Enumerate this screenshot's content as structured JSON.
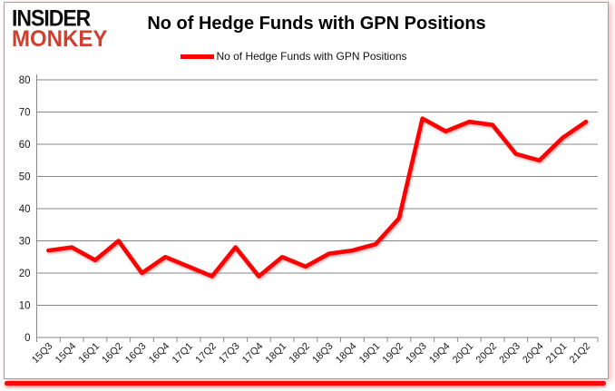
{
  "brand": {
    "line1": "INSIDER",
    "line2": "MONKEY",
    "color": "#d0402e"
  },
  "header": {
    "title": "No of Hedge Funds with GPN Positions"
  },
  "legend": {
    "label": "No of Hedge Funds with GPN Positions",
    "line_color": "#fe0000"
  },
  "chart_data": {
    "type": "line",
    "title": "No of Hedge Funds with GPN Positions",
    "categories": [
      "15Q3",
      "15Q4",
      "16Q1",
      "16Q2",
      "16Q3",
      "16Q4",
      "17Q1",
      "17Q2",
      "17Q3",
      "17Q4",
      "18Q1",
      "18Q2",
      "18Q3",
      "18Q4",
      "19Q1",
      "19Q2",
      "19Q3",
      "19Q4",
      "20Q1",
      "20Q2",
      "20Q3",
      "20Q4",
      "21Q1",
      "21Q2"
    ],
    "series": [
      {
        "name": "No of Hedge Funds with GPN Positions",
        "color": "#fe0000",
        "values": [
          27,
          28,
          24,
          30,
          20,
          25,
          22,
          19,
          28,
          19,
          25,
          22,
          26,
          27,
          29,
          37,
          68,
          64,
          67,
          66,
          57,
          55,
          62,
          67
        ]
      }
    ],
    "xlabel": "",
    "ylabel": "",
    "ylim": [
      0,
      80
    ],
    "ytick_step": 10,
    "grid": true,
    "legend_position": "top"
  },
  "colors": {
    "grid": "#878787",
    "axis": "#878787",
    "tick_text": "#1a1a1a",
    "background": "#ffffff",
    "frame_border": "#9f9f9f",
    "bottom_bar": "#fa0a05"
  }
}
